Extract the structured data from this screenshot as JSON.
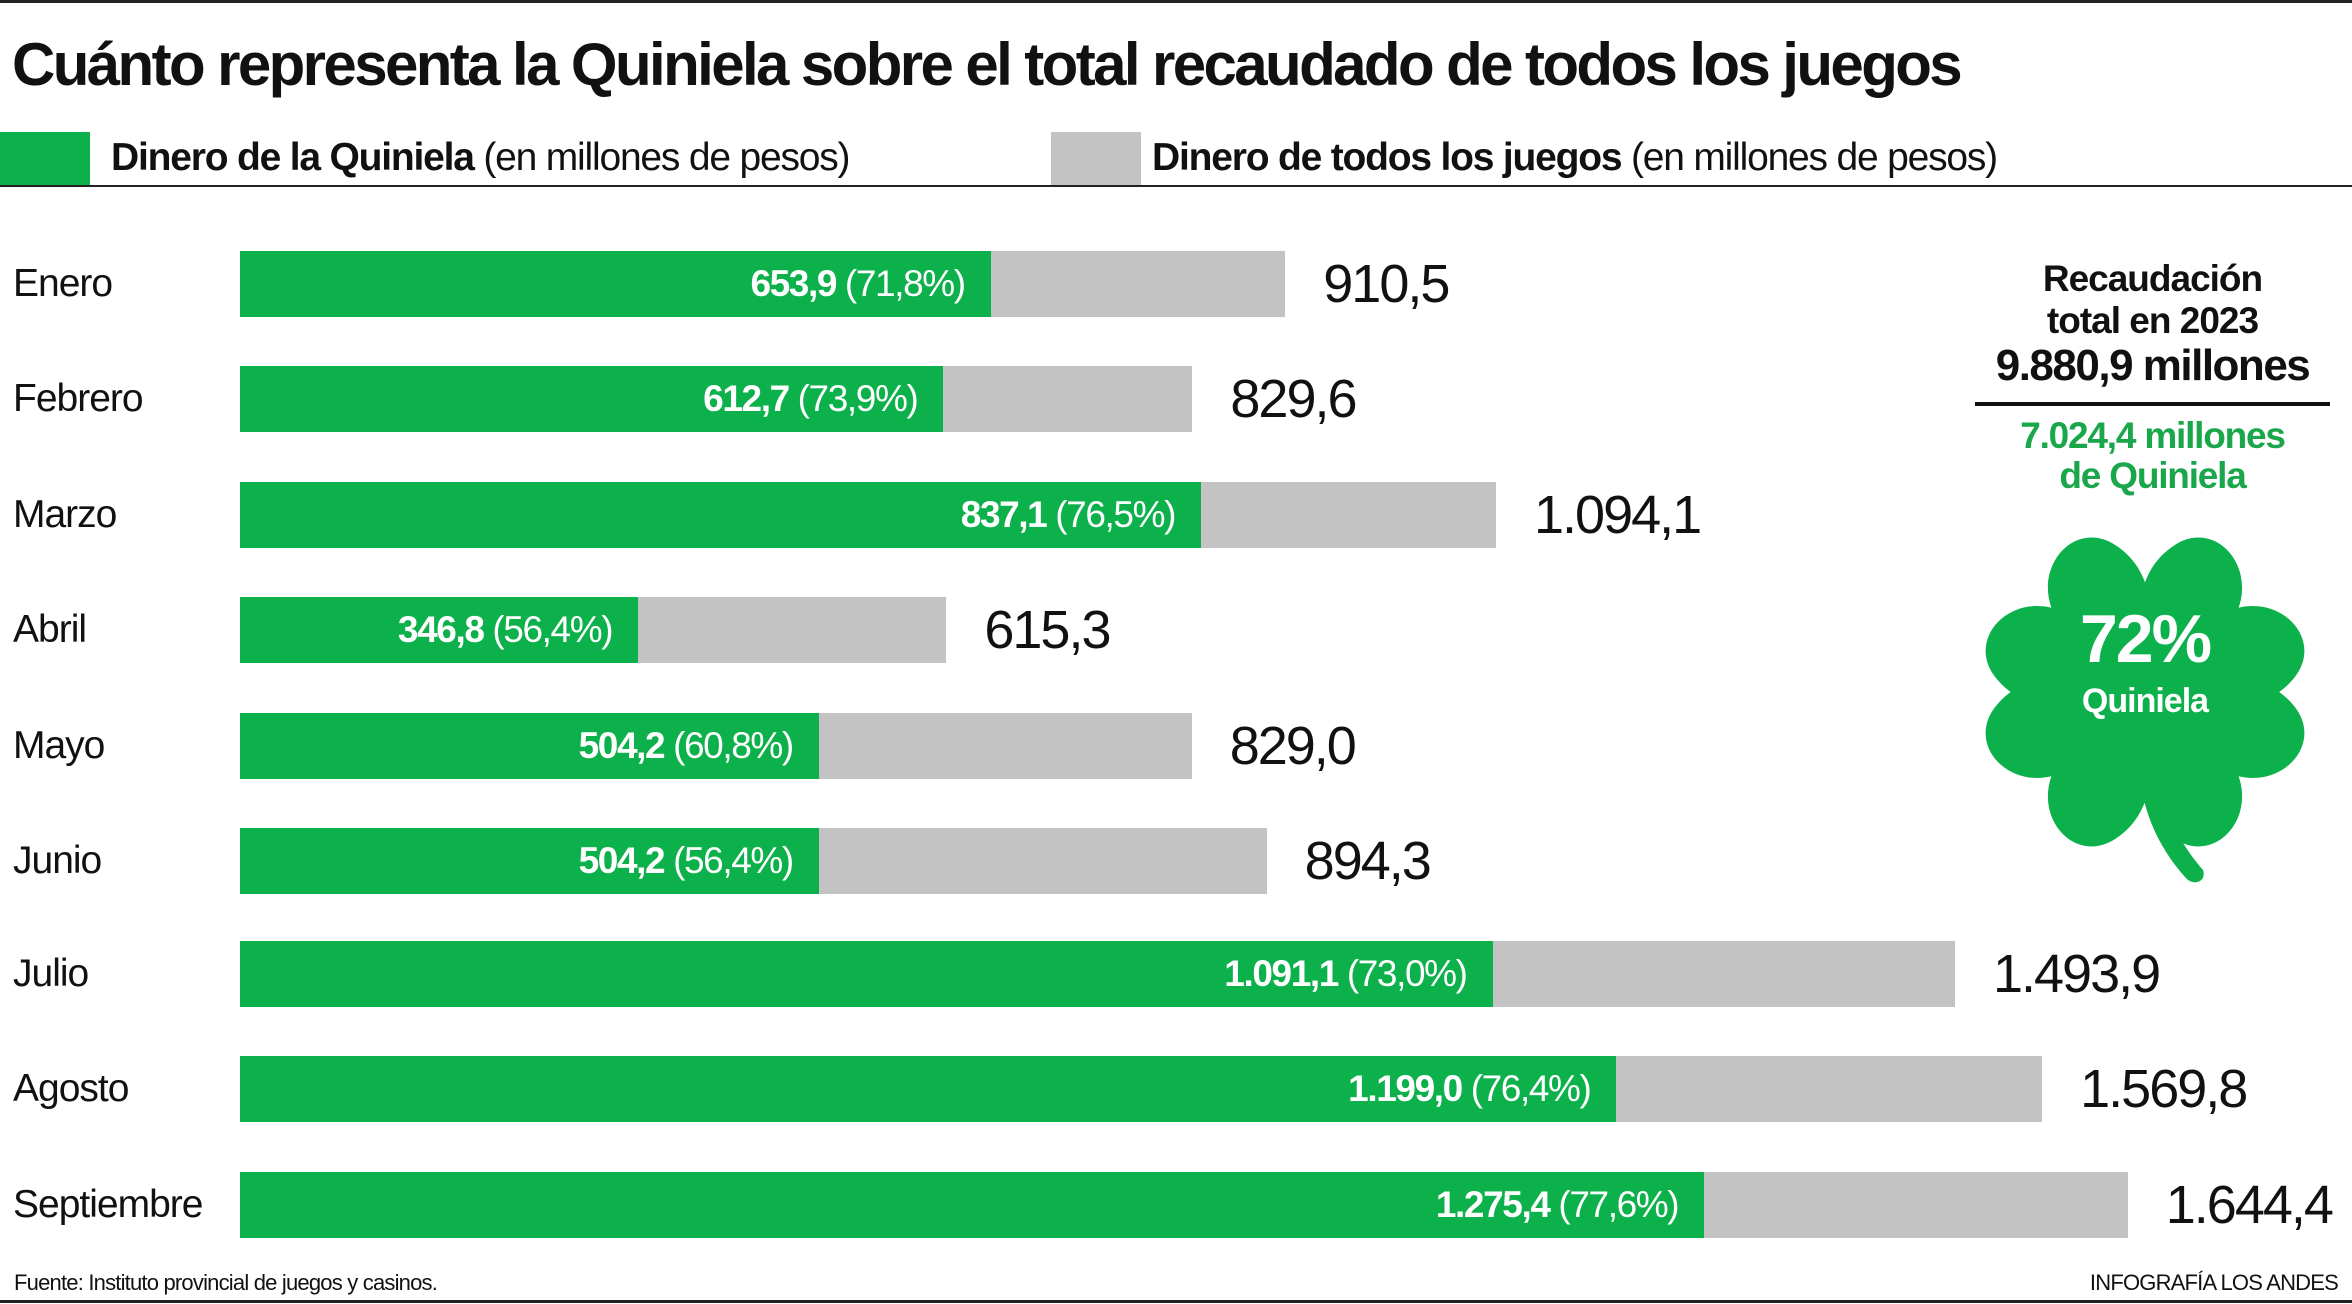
{
  "title": "Cuánto representa la Quiniela sobre el total recaudado de todos los  juegos",
  "legend": [
    {
      "bold": "Dinero de la Quiniela",
      "rest": " (en millones de pesos)",
      "color": "#0db14b"
    },
    {
      "bold": "Dinero de todos los juegos",
      "rest": " (en millones de pesos)",
      "color": "#c3c3c3"
    }
  ],
  "chart_data": {
    "type": "bar",
    "orientation": "horizontal",
    "stacked_overlay": true,
    "title": "Cuánto representa la Quiniela sobre el total recaudado de todos los  juegos",
    "categories": [
      "Enero",
      "Febrero",
      "Marzo",
      "Abril",
      "Mayo",
      "Junio",
      "Julio",
      "Agosto",
      "Septiembre"
    ],
    "series": [
      {
        "name": "Dinero de la Quiniela",
        "values": [
          653.9,
          612.7,
          837.1,
          346.8,
          504.2,
          504.2,
          1091.1,
          1199.0,
          1275.4
        ],
        "color": "#0db14b"
      },
      {
        "name": "Dinero de todos los juegos",
        "values": [
          910.5,
          829.6,
          1094.1,
          615.3,
          829.0,
          894.3,
          1493.9,
          1569.8,
          1644.4
        ],
        "color": "#c3c3c3"
      }
    ],
    "quiniela_labels": [
      "653,9",
      "612,7",
      "837,1",
      "346,8",
      "504,2",
      "504,2",
      "1.091,1",
      "1.199,0",
      "1.275,4"
    ],
    "percent_labels": [
      "(71,8%)",
      "(73,9%)",
      "(76,5%)",
      "(56,4%)",
      "(60,8%)",
      "(56,4%)",
      "(73,0%)",
      "(76,4%)",
      "(77,6%)"
    ],
    "total_labels": [
      "910,5",
      "829,6",
      "1.094,1",
      "615,3",
      "829,0",
      "894,3",
      "1.493,9",
      "1.569,8",
      "1.644,4"
    ],
    "xlim": [
      0,
      1644.4
    ],
    "grid": false,
    "legend_position": "top"
  },
  "summary": {
    "line1": "Recaudación",
    "line2": "total en 2023",
    "total": "9.880,9 millones",
    "quiniela1": "7.024,4 millones",
    "quiniela2": "de Quiniela",
    "percent": "72%",
    "percent_label": "Quiniela",
    "clover_color": "#0db14b"
  },
  "footer": {
    "source": "Fuente: Instituto provincial de juegos y casinos.",
    "credit": "INFOGRAFÍA LOS ANDES"
  }
}
